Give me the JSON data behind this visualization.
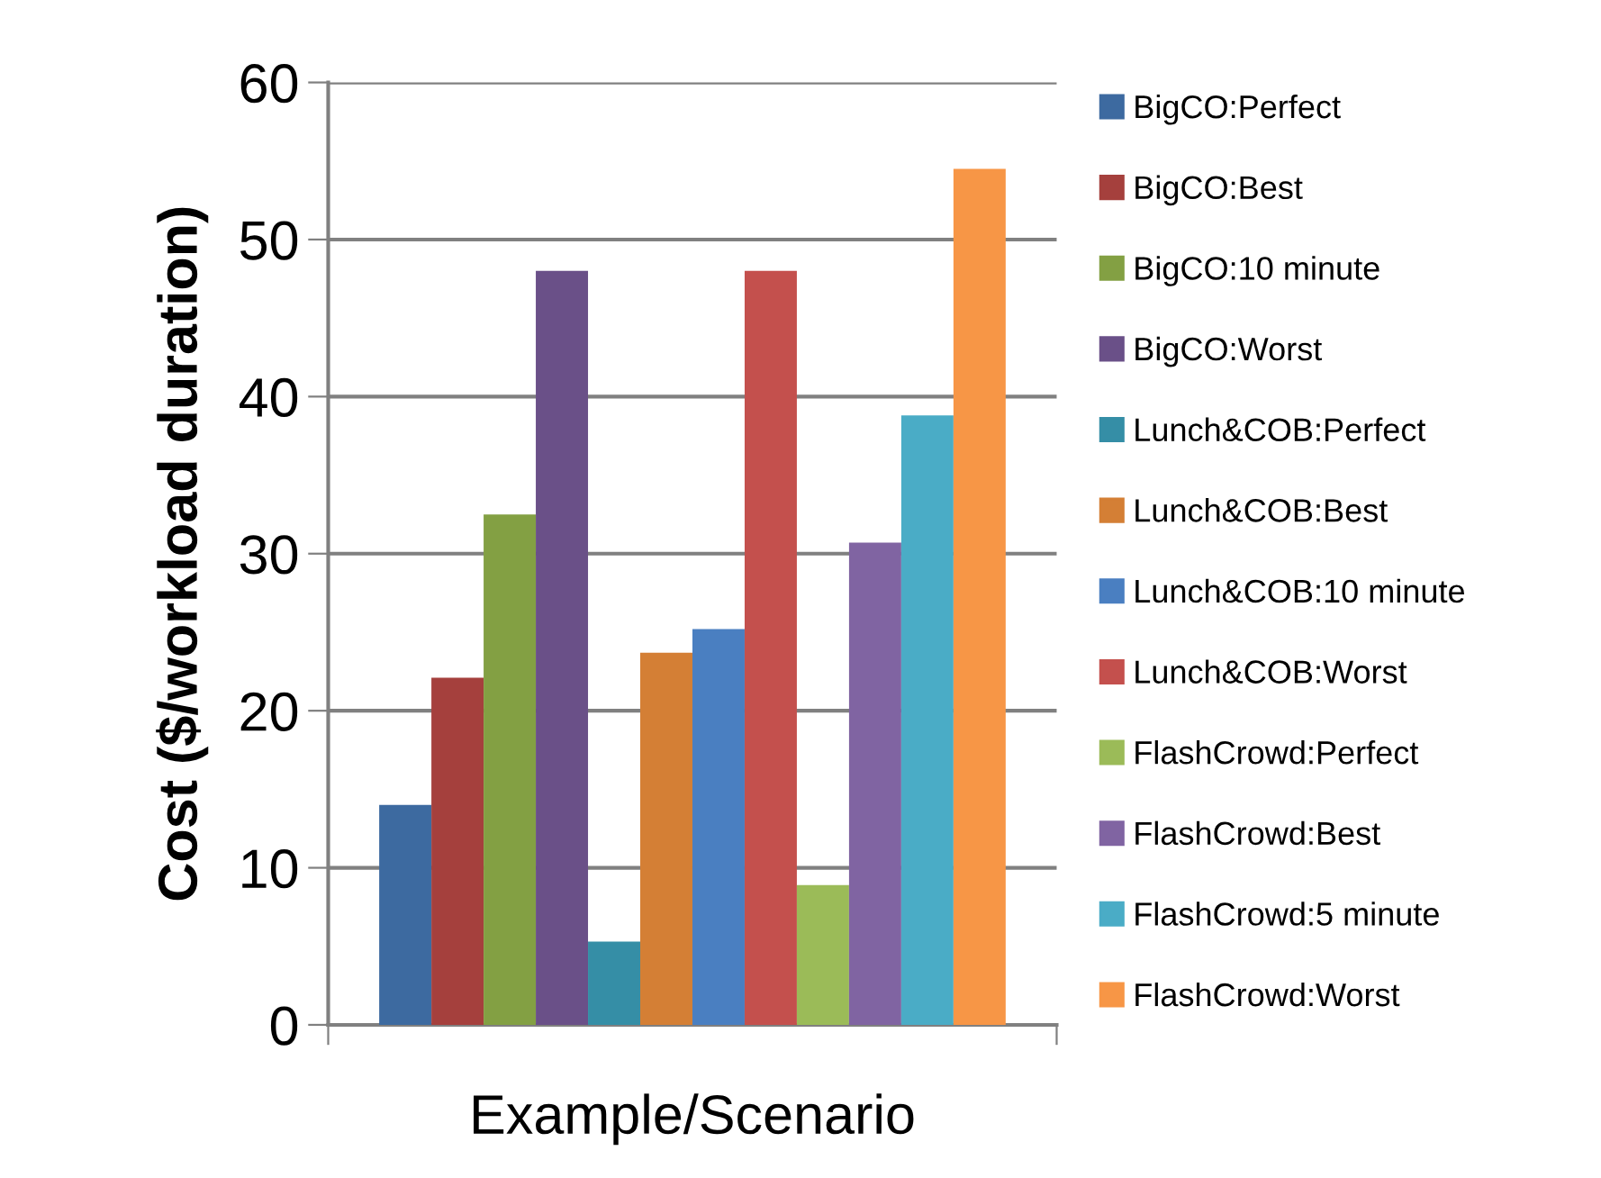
{
  "chart_data": {
    "type": "bar",
    "ylabel": "Cost ($/workload duration)",
    "xlabel": "Example/Scenario",
    "categories": [
      null
    ],
    "series": [
      {
        "name": "BigCO:Perfect",
        "color": "#3d6aa0",
        "values": [
          14
        ]
      },
      {
        "name": "BigCO:Best",
        "color": "#a5403d",
        "values": [
          22.1
        ]
      },
      {
        "name": "BigCO:10 minute",
        "color": "#83a043",
        "values": [
          32.5
        ]
      },
      {
        "name": "BigCO:Worst",
        "color": "#6a5088",
        "values": [
          48
        ]
      },
      {
        "name": "Lunch&COB:Perfect",
        "color": "#358ea6",
        "values": [
          5.3
        ]
      },
      {
        "name": "Lunch&COB:Best",
        "color": "#d47f35",
        "values": [
          23.7
        ]
      },
      {
        "name": "Lunch&COB:10 minute",
        "color": "#4a7fc1",
        "values": [
          25.2
        ]
      },
      {
        "name": "Lunch&COB:Worst",
        "color": "#c4504d",
        "values": [
          48
        ]
      },
      {
        "name": "FlashCrowd:Perfect",
        "color": "#9bbb58",
        "values": [
          8.9
        ]
      },
      {
        "name": "FlashCrowd:Best",
        "color": "#8064a2",
        "values": [
          30.7
        ]
      },
      {
        "name": "FlashCrowd:5 minute",
        "color": "#4aacc6",
        "values": [
          38.8
        ]
      },
      {
        "name": "FlashCrowd:Worst",
        "color": "#f79646",
        "values": [
          54.5
        ]
      }
    ],
    "ylim": [
      0,
      60
    ],
    "yticks": [
      0,
      10,
      20,
      30,
      40,
      50,
      60
    ],
    "grid": "y",
    "legend": "right"
  }
}
